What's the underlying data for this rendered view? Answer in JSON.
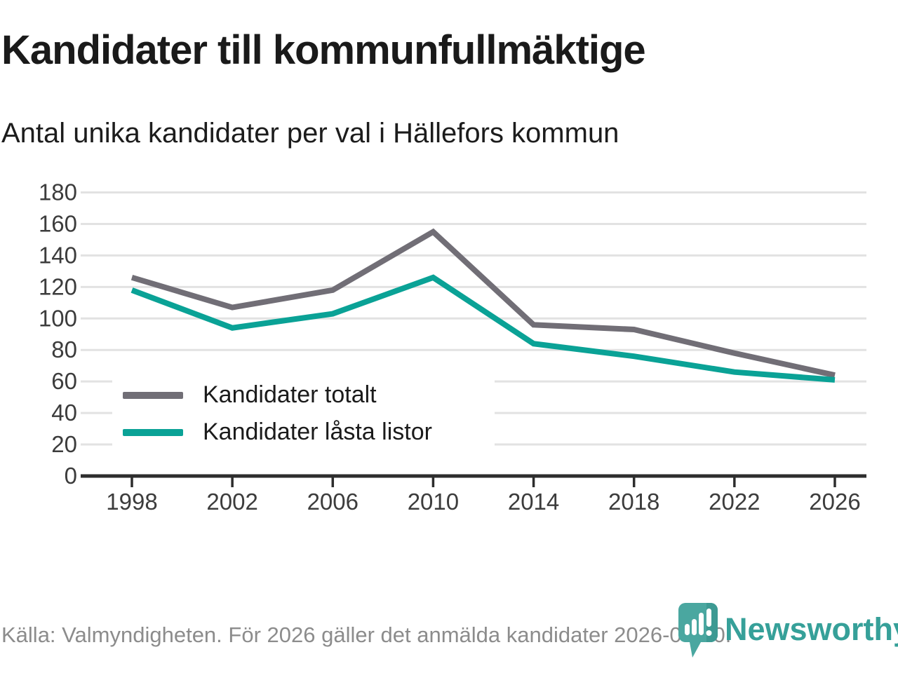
{
  "title": "Kandidater till kommunfullmäktige",
  "subtitle": "Antal unika kandidater per val i Hällefors kommun",
  "legend": {
    "items": [
      {
        "label": "Kandidater totalt",
        "color": "#716e76"
      },
      {
        "label": "Kandidater låsta listor",
        "color": "#0aa296"
      }
    ]
  },
  "footer": {
    "source_text": "Källa: Valmyndigheten. För 2026 gäller det anmälda kandidater 2026-04-10.",
    "brand": "Newsworthy"
  },
  "colors": {
    "total_line": "#716e76",
    "locked_line": "#0aa296",
    "grid": "#e2e2e2",
    "axis": "#2d2d2d",
    "tick_label": "#3c3c3c",
    "brand_teal": "#4aa7a0",
    "brand_teal_dark": "#35928b"
  },
  "chart_data": {
    "type": "line",
    "categories": [
      "1998",
      "2002",
      "2006",
      "2010",
      "2014",
      "2018",
      "2022",
      "2026"
    ],
    "series": [
      {
        "name": "Kandidater totalt",
        "values": [
          126,
          107,
          118,
          155,
          96,
          93,
          78,
          64
        ],
        "color": "#716e76"
      },
      {
        "name": "Kandidater låsta listor",
        "values": [
          118,
          94,
          103,
          126,
          84,
          76,
          66,
          61
        ],
        "color": "#0aa296"
      }
    ],
    "title": "Kandidater till kommunfullmäktige",
    "subtitle": "Antal unika kandidater per val i Hällefors kommun",
    "xlabel": "",
    "ylabel": "",
    "ylim": [
      0,
      180
    ],
    "ytick_step": 20,
    "grid": "horizontal",
    "legend_position": "inside-bottom-left"
  }
}
